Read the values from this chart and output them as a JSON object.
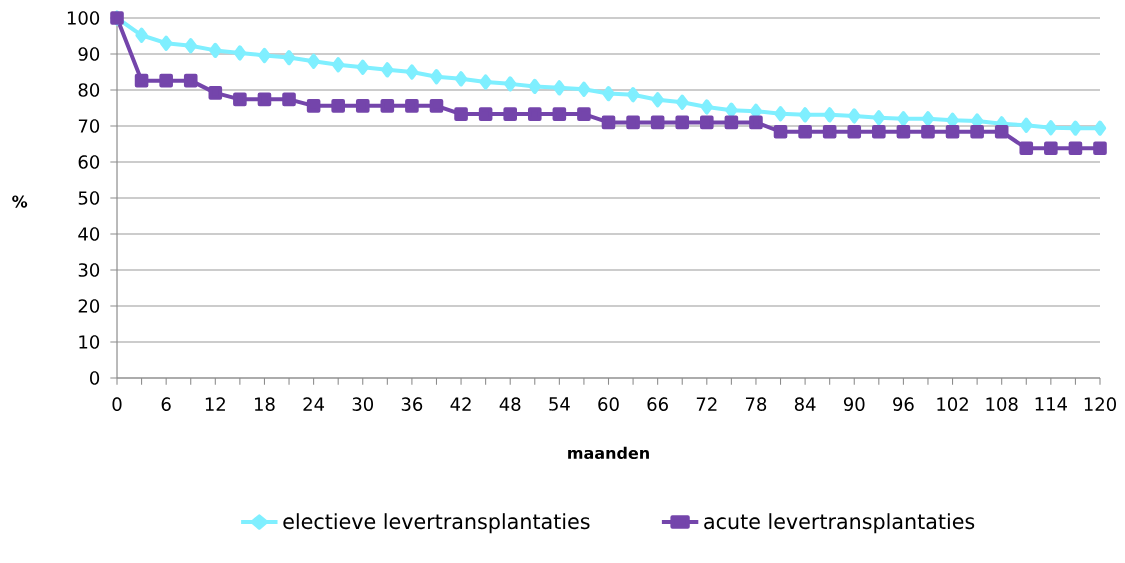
{
  "chart_data": {
    "type": "line",
    "xlabel": "maanden",
    "ylabel": "%",
    "categories": [
      "0",
      null,
      "6",
      null,
      "12",
      null,
      "18",
      null,
      "24",
      null,
      "30",
      null,
      "36",
      null,
      "42",
      null,
      "48",
      null,
      "54",
      null,
      "60",
      null,
      "66",
      null,
      "72",
      null,
      "78",
      null,
      "84",
      null,
      "90",
      null,
      "96",
      null,
      "102",
      null,
      "108",
      null,
      "114",
      null,
      "120"
    ],
    "series": [
      {
        "name": "electieve levertransplantaties",
        "color": "#7fefff",
        "marker": "diamond",
        "values": [
          100,
          95.2,
          93,
          92.3,
          91,
          90.3,
          89.6,
          89,
          88,
          87,
          86.3,
          85.6,
          85,
          83.7,
          83.1,
          82.2,
          81.7,
          81,
          80.6,
          80.2,
          79,
          78.7,
          77.3,
          76.6,
          75.3,
          74.4,
          74.1,
          73.4,
          73.1,
          73.1,
          72.8,
          72.3,
          72,
          72,
          71.6,
          71.4,
          70.6,
          70.2,
          69.5,
          69.4,
          69.4
        ]
      },
      {
        "name": "acute levertransplantaties",
        "color": "#7445ab",
        "marker": "square",
        "values": [
          100,
          82.6,
          82.6,
          82.6,
          79.2,
          77.4,
          77.4,
          77.4,
          75.6,
          75.6,
          75.6,
          75.6,
          75.6,
          75.6,
          73.3,
          73.3,
          73.3,
          73.3,
          73.3,
          73.3,
          71,
          71,
          71,
          71,
          71,
          71,
          71,
          68.4,
          68.4,
          68.4,
          68.4,
          68.4,
          68.4,
          68.4,
          68.4,
          68.4,
          68.4,
          63.8,
          63.8,
          63.8,
          63.8
        ]
      }
    ],
    "ylim": [
      0,
      100
    ],
    "yticks": [
      0,
      10,
      20,
      30,
      40,
      50,
      60,
      70,
      80,
      90,
      100
    ],
    "grid": "y",
    "legend": "bottom",
    "line_style": "solid"
  }
}
